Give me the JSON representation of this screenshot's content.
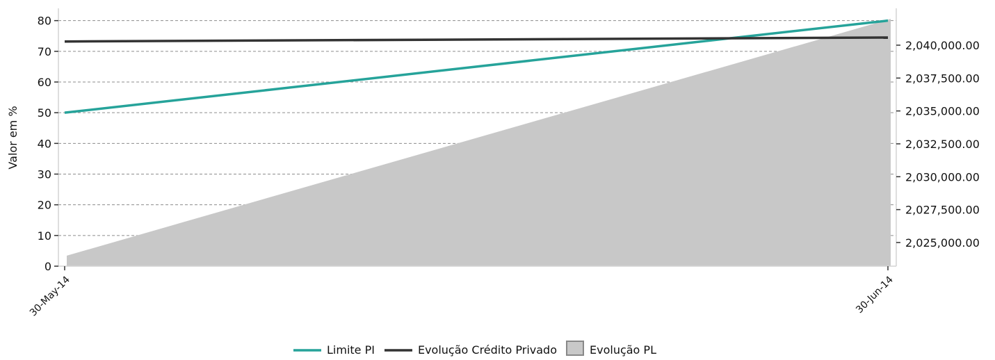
{
  "chart_data": {
    "type": "line",
    "x": [
      "30-May-14",
      "30-Jun-14"
    ],
    "ylabel": "Valor em %",
    "ylim": [
      0,
      84
    ],
    "yticks": [
      0,
      10,
      20,
      30,
      40,
      50,
      60,
      70,
      80
    ],
    "y2lim": [
      2023200,
      2042800
    ],
    "y2ticks": [
      2025000,
      2027500,
      2030000,
      2032500,
      2035000,
      2037500,
      2040000
    ],
    "y2tick_labels": [
      "2,025,000.00",
      "2,027,500.00",
      "2,030,000.00",
      "2,032,500.00",
      "2,035,000.00",
      "2,037,500.00",
      "2,040,000.00"
    ],
    "grid": true,
    "legend_position": "bottom-center",
    "series": [
      {
        "name": "Limite PI",
        "kind": "line",
        "axis": "left",
        "color": "#26a39a",
        "values": [
          50,
          80
        ]
      },
      {
        "name": "Evolução Crédito Privado",
        "kind": "line",
        "axis": "left",
        "color": "#333333",
        "values": [
          73.2,
          74.5
        ]
      },
      {
        "name": "Evolução PL",
        "kind": "area",
        "axis": "right",
        "color": "#c8c8c8",
        "values": [
          2024000,
          2042000
        ]
      }
    ]
  }
}
